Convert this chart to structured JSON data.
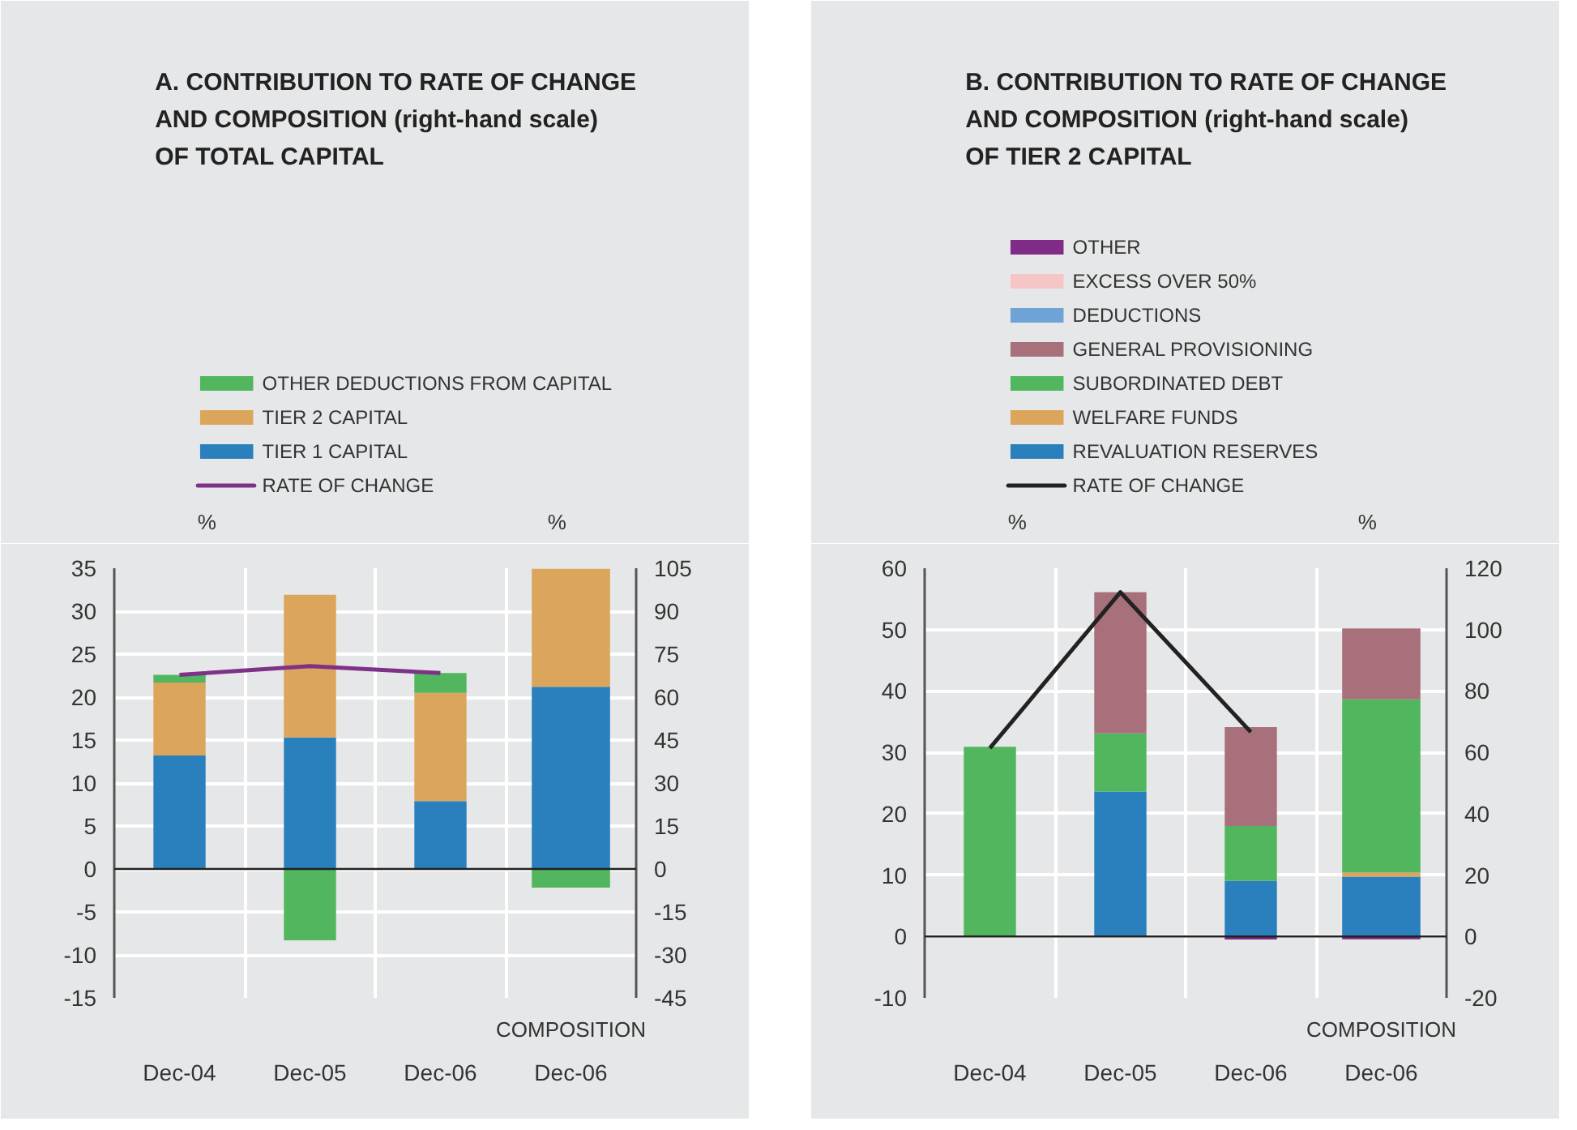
{
  "chart_data": [
    {
      "type": "bar",
      "stacked": true,
      "title": "A.  CONTRIBUTION TO RATE OF CHANGE\nAND COMPOSITION (right-hand scale)\nOF TOTAL CAPITAL",
      "ylabel": "%",
      "y2label": "%",
      "categories": [
        "Dec-04",
        "Dec-05",
        "Dec-06",
        "Dec-06"
      ],
      "annotations": [
        "COMPOSITION"
      ],
      "series": [
        {
          "name": "TIER 1 CAPITAL",
          "color": "#2a80bd",
          "values": [
            13.2,
            15.3,
            7.9,
            null
          ]
        },
        {
          "name": "TIER 2 CAPITAL",
          "color": "#dba65b",
          "values": [
            8.5,
            16.6,
            12.6,
            null
          ]
        },
        {
          "name": "OTHER DEDUCTIONS FROM CAPITAL",
          "color": "#52b65f",
          "values": [
            0.9,
            -8.3,
            2.3,
            null
          ]
        },
        {
          "color": "#2a80bd",
          "axis": "y2",
          "values": [
            null,
            null,
            null,
            63.6
          ]
        },
        {
          "color": "#dba65b",
          "axis": "y2",
          "values": [
            null,
            null,
            null,
            41.2
          ]
        },
        {
          "color": "#52b65f",
          "axis": "y2",
          "values": [
            null,
            null,
            null,
            -6.5
          ]
        },
        {
          "name": "RATE OF CHANGE",
          "type": "line",
          "color": "#7f3187",
          "values": [
            22.6,
            23.6,
            22.8,
            null
          ]
        }
      ],
      "ylim": [
        -15,
        35
      ],
      "yticks": [
        -15,
        -10,
        -5,
        0,
        5,
        10,
        15,
        20,
        25,
        30,
        35
      ],
      "y2lim": [
        -45,
        105
      ],
      "y2ticks": [
        -45,
        -30,
        -15,
        0,
        15,
        30,
        45,
        60,
        75,
        90,
        105
      ],
      "ref_lines": [
        {
          "axis": "y",
          "value": 0,
          "color": "#222222"
        }
      ],
      "grid": true,
      "legend": "top"
    },
    {
      "type": "bar",
      "stacked": true,
      "title": "B.  CONTRIBUTION TO RATE OF CHANGE\nAND COMPOSITION (right-hand scale)\nOF TIER 2 CAPITAL",
      "ylabel": "%",
      "y2label": "%",
      "categories": [
        "Dec-04",
        "Dec-05",
        "Dec-06",
        "Dec-06"
      ],
      "annotations": [
        "COMPOSITION"
      ],
      "series": [
        {
          "name": "REVALUATION RESERVES",
          "color": "#2a80bd",
          "values": [
            null,
            23.6,
            9.1,
            null
          ]
        },
        {
          "name": "WELFARE FUNDS",
          "color": "#dba65b",
          "values": [
            null,
            null,
            null,
            null
          ]
        },
        {
          "name": "SUBORDINATED DEBT",
          "color": "#52b65f",
          "values": [
            30.9,
            9.5,
            8.9,
            null
          ]
        },
        {
          "name": "GENERAL PROVISIONING",
          "color": "#a8707a",
          "values": [
            null,
            23.0,
            16.1,
            null
          ]
        },
        {
          "name": "DEDUCTIONS",
          "color": "#6fa3d5",
          "values": [
            null,
            null,
            null,
            null
          ]
        },
        {
          "name": "EXCESS OVER 50%",
          "color": "#f6c6c6",
          "values": [
            null,
            null,
            null,
            null
          ]
        },
        {
          "name": "OTHER",
          "color": "#7f2b87",
          "values": [
            null,
            null,
            -0.5,
            null
          ]
        },
        {
          "color": "#2a80bd",
          "axis": "y2",
          "values": [
            null,
            null,
            null,
            19.5
          ]
        },
        {
          "color": "#dba65b",
          "axis": "y2",
          "values": [
            null,
            null,
            null,
            1.4
          ]
        },
        {
          "color": "#52b65f",
          "axis": "y2",
          "values": [
            null,
            null,
            null,
            56.4
          ]
        },
        {
          "color": "#a8707a",
          "axis": "y2",
          "values": [
            null,
            null,
            null,
            23.1
          ]
        },
        {
          "color": "#7f2b87",
          "axis": "y2",
          "values": [
            null,
            null,
            null,
            -0.9
          ]
        },
        {
          "name": "RATE OF CHANGE",
          "type": "line",
          "color": "#222222",
          "values": [
            30.7,
            56.1,
            33.3,
            null
          ]
        }
      ],
      "ylim": [
        -10,
        60
      ],
      "yticks": [
        -10,
        0,
        10,
        20,
        30,
        40,
        50,
        60
      ],
      "y2lim": [
        -20,
        120
      ],
      "y2ticks": [
        -20,
        0,
        20,
        40,
        60,
        80,
        100,
        120
      ],
      "ref_lines": [
        {
          "axis": "y",
          "value": 0,
          "color": "#222222"
        }
      ],
      "grid": true,
      "legend": "top"
    }
  ]
}
